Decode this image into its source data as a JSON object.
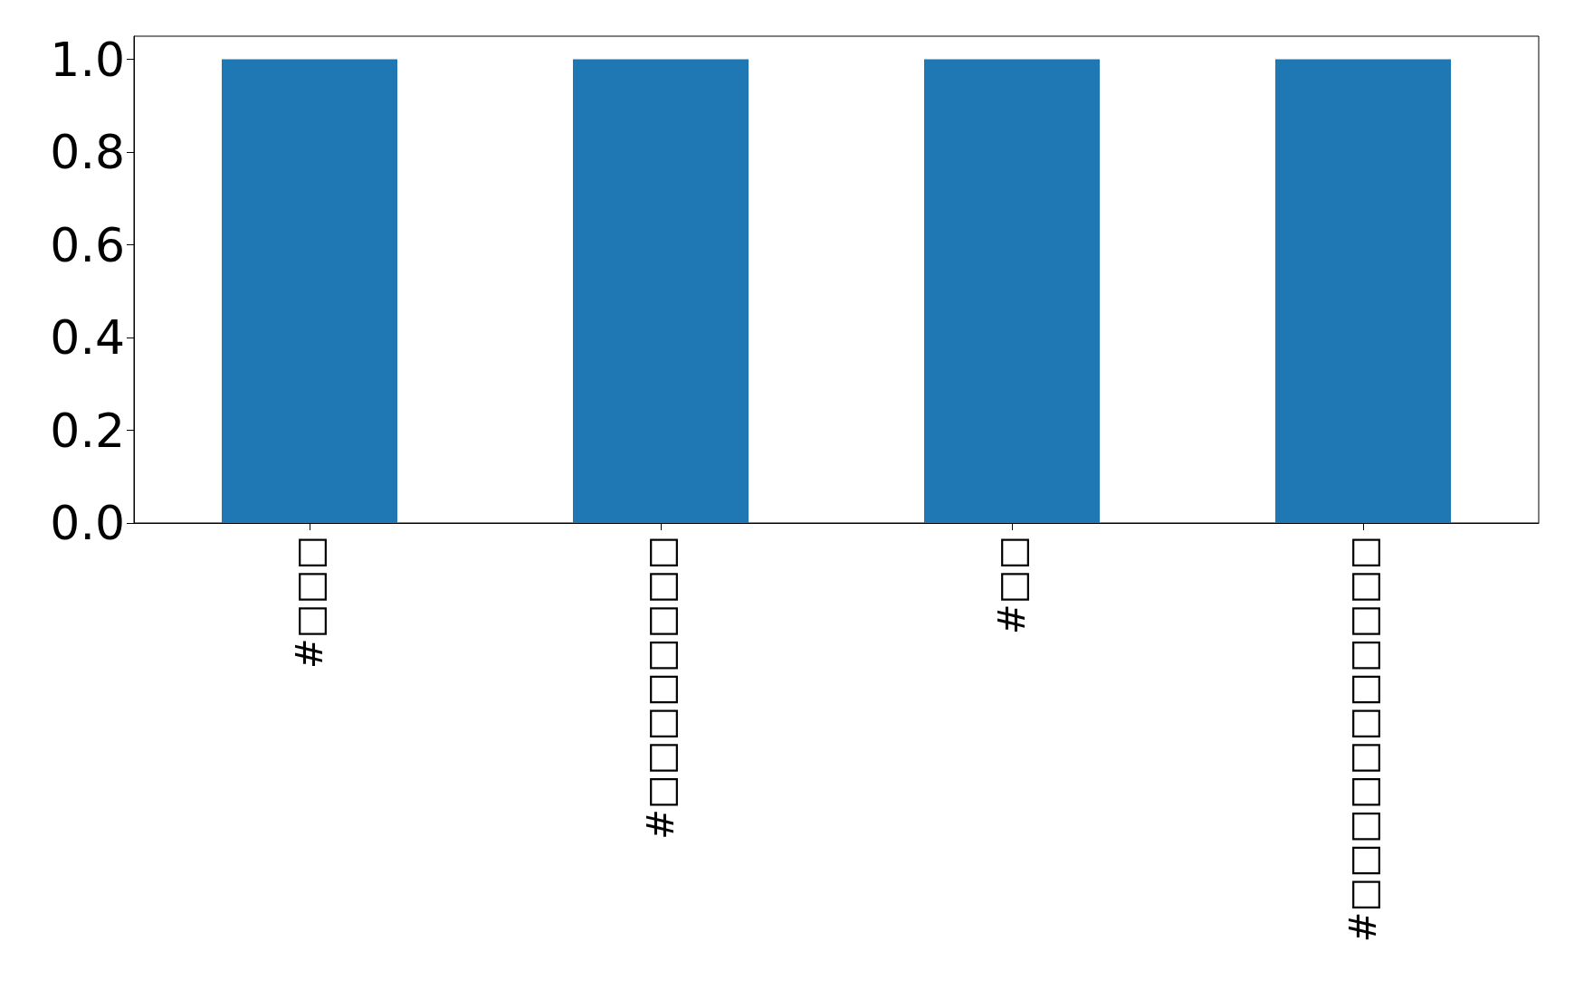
{
  "chart_data": {
    "type": "bar",
    "categories": [
      "#□□□",
      "#□□□□□□□□",
      "#□□",
      "#□□□□□□□□□□□"
    ],
    "values": [
      1,
      1,
      1,
      1
    ],
    "color": "#1f77b4",
    "ylim": [
      0,
      1.05
    ],
    "yticks": [
      {
        "value": 0,
        "label": "0.0"
      },
      {
        "value": 0.2,
        "label": "0.2"
      },
      {
        "value": 0.4,
        "label": "0.4"
      },
      {
        "value": 0.6,
        "label": "0.6"
      },
      {
        "value": 0.8,
        "label": "0.8"
      },
      {
        "value": 1,
        "label": "1.0"
      }
    ],
    "grid": false
  }
}
